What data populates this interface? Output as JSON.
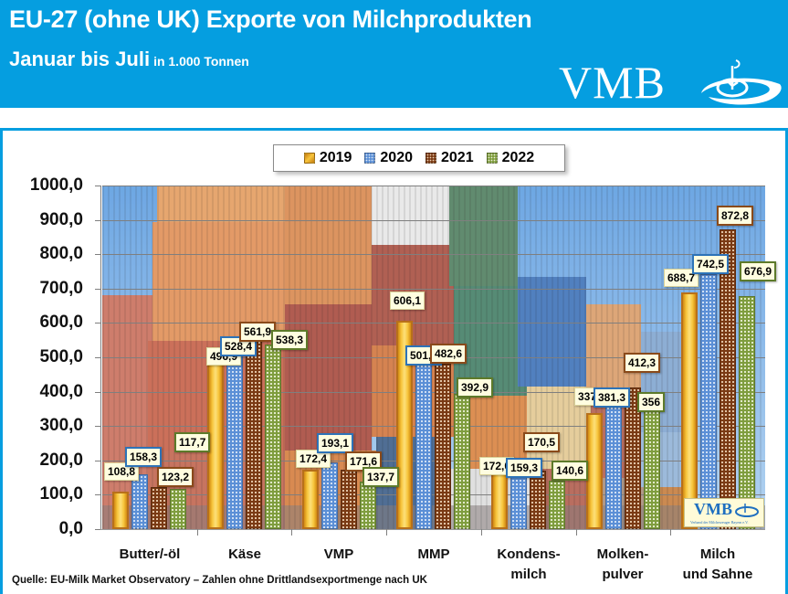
{
  "header": {
    "title": "EU-27 (ohne UK) Exporte von Milchprodukten",
    "subtitle": "Januar bis Juli",
    "unit": "in 1.000 Tonnen",
    "logo_text": "VMB",
    "background_color": "#059ee0"
  },
  "legend": {
    "items": [
      {
        "label": "2019",
        "color": "#f2b632"
      },
      {
        "label": "2020",
        "color": "#5b8fd6"
      },
      {
        "label": "2021",
        "color": "#8a4a1a"
      },
      {
        "label": "2022",
        "color": "#7f9d3e"
      }
    ]
  },
  "inset_logo": {
    "text": "VMB",
    "subtext": "Verband der Milcherzeuger Bayern e.V."
  },
  "source": "Quelle: EU-Milk Market Observatory – Zahlen ohne Drittlandsexportmenge nach UK",
  "chart_data": {
    "type": "bar",
    "title": "EU-27 (ohne UK) Exporte von Milchprodukten – Januar bis Juli",
    "ylabel": "in 1.000 Tonnen",
    "xlabel": "",
    "ylim": [
      0,
      1000
    ],
    "yticks": [
      "0,0",
      "100,0",
      "200,0",
      "300,0",
      "400,0",
      "500,0",
      "600,0",
      "700,0",
      "800,0",
      "900,0",
      "1000,0"
    ],
    "grid": true,
    "legend_position": "top",
    "categories": [
      "Butter/-öl",
      "Käse",
      "VMP",
      "MMP",
      "Kondens-\nmilch",
      "Molken-\npulver",
      "Milch\nund Sahne"
    ],
    "category_lines": [
      [
        "Butter/-öl"
      ],
      [
        "Käse"
      ],
      [
        "VMP"
      ],
      [
        "MMP"
      ],
      [
        "Kondens-",
        "milch"
      ],
      [
        "Molken-",
        "pulver"
      ],
      [
        "Milch",
        "und Sahne"
      ]
    ],
    "series": [
      {
        "name": "2019",
        "values": [
          108.8,
          496.9,
          172.4,
          606.1,
          172.0,
          337.5,
          688.7
        ],
        "labels": [
          "108,8",
          "496,9",
          "172,4",
          "606,1",
          "172,0",
          "337,5",
          "688,7"
        ]
      },
      {
        "name": "2020",
        "values": [
          158.3,
          528.4,
          193.1,
          501.4,
          159.3,
          381.3,
          742.5
        ],
        "labels": [
          "158,3",
          "528,4",
          "193,1",
          "501,4",
          "159,3",
          "381,3",
          "742,5"
        ]
      },
      {
        "name": "2021",
        "values": [
          123.2,
          561.9,
          171.6,
          482.6,
          170.5,
          412.3,
          872.8
        ],
        "labels": [
          "123,2",
          "561,9",
          "171,6",
          "482,6",
          "170,5",
          "412,3",
          "872,8"
        ]
      },
      {
        "name": "2022",
        "values": [
          117.7,
          538.3,
          137.7,
          392.9,
          140.6,
          356,
          676.9
        ],
        "labels": [
          "117,7",
          "538,3",
          "137,7",
          "392,9",
          "140,6",
          "356",
          "676,9"
        ]
      }
    ]
  }
}
